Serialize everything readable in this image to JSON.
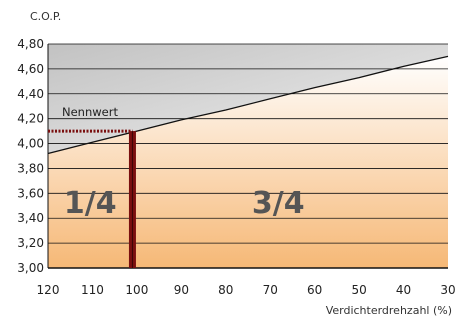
{
  "chart_data": {
    "type": "line",
    "ylabel": "C.O.P.",
    "xlabel": "Verdichterdrehzahl (%)",
    "x_ticks": [
      120,
      110,
      100,
      90,
      80,
      70,
      60,
      50,
      40,
      30
    ],
    "y_ticks": [
      "3,00",
      "3,20",
      "3,40",
      "3,60",
      "3,80",
      "4,00",
      "4,20",
      "4,40",
      "4,60",
      "4,80"
    ],
    "xlim": [
      120,
      30
    ],
    "ylim": [
      3.0,
      4.8
    ],
    "grid": "horizontal",
    "series": [
      {
        "x": [
          120,
          110,
          100,
          90,
          80,
          70,
          60,
          50,
          40,
          30
        ],
        "y": [
          3.92,
          4.01,
          4.1,
          4.19,
          4.27,
          4.36,
          4.45,
          4.53,
          4.62,
          4.7
        ]
      }
    ],
    "nominal": {
      "label": "Nennwert",
      "x": 101,
      "y": 4.1
    },
    "regions": [
      {
        "label": "1/4",
        "x_from": 120,
        "x_to": 101
      },
      {
        "label": "3/4",
        "x_from": 101,
        "x_to": 30
      }
    ],
    "colors": {
      "line": "#111111",
      "grid": "#111111",
      "nominal_marker": "#7a0f0f",
      "upper_fill": "#c8c8c8",
      "lower_fill_top": "#ffffff",
      "lower_fill_bottom": "#f5b877"
    }
  }
}
